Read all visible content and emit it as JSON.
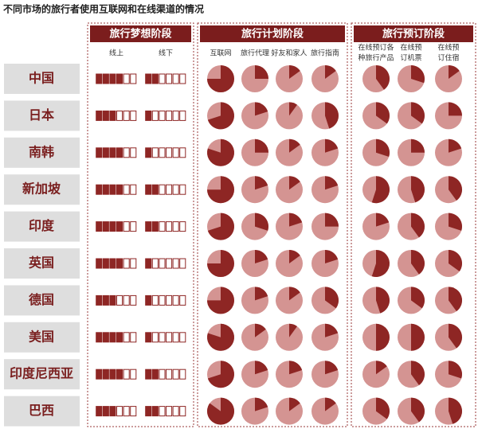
{
  "chart_data": {
    "type": "pie-table",
    "title": "不同市场的旅行者使用互联网和在线渠道的情况",
    "rows": [
      "中国",
      "日本",
      "南韩",
      "新加坡",
      "印度",
      "英国",
      "德国",
      "美国",
      "印度尼西亚",
      "巴西"
    ],
    "box_total": 6,
    "color_dark": "#8e2624",
    "color_light": "#d49492",
    "stages": [
      {
        "title": "旅行梦想阶段",
        "kind": "boxes",
        "columns": [
          {
            "label": [
              "线上"
            ],
            "values": [
              4,
              3,
              4,
              4,
              4,
              4,
              3,
              4,
              4,
              3
            ]
          },
          {
            "label": [
              "线下"
            ],
            "values": [
              2,
              1,
              1,
              2,
              2,
              1,
              1,
              1,
              2,
              2
            ]
          }
        ]
      },
      {
        "title": "旅行计划阶段",
        "kind": "pie",
        "columns": [
          {
            "label": [
              "互联网"
            ],
            "values": [
              75,
              70,
              80,
              75,
              70,
              75,
              75,
              80,
              70,
              85
            ]
          },
          {
            "label": [
              "旅行代理"
            ],
            "values": [
              25,
              20,
              25,
              20,
              30,
              20,
              20,
              15,
              20,
              20
            ]
          },
          {
            "label": [
              "好友和家人"
            ],
            "values": [
              15,
              10,
              15,
              15,
              20,
              15,
              15,
              10,
              20,
              15
            ]
          },
          {
            "label": [
              "旅行指南"
            ],
            "values": [
              15,
              45,
              20,
              20,
              25,
              20,
              35,
              20,
              20,
              15
            ]
          }
        ]
      },
      {
        "title": "旅行预订阶段",
        "kind": "pie",
        "columns": [
          {
            "label": [
              "在线预订各",
              "种旅行产品"
            ],
            "values": [
              40,
              35,
              30,
              55,
              20,
              55,
              45,
              50,
              15,
              35
            ]
          },
          {
            "label": [
              "在线预",
              "订机票"
            ],
            "values": [
              30,
              35,
              25,
              45,
              40,
              40,
              35,
              50,
              40,
              40
            ]
          },
          {
            "label": [
              "在线预",
              "订住宿"
            ],
            "values": [
              15,
              25,
              20,
              40,
              30,
              35,
              40,
              40,
              30,
              45
            ]
          }
        ]
      }
    ]
  }
}
